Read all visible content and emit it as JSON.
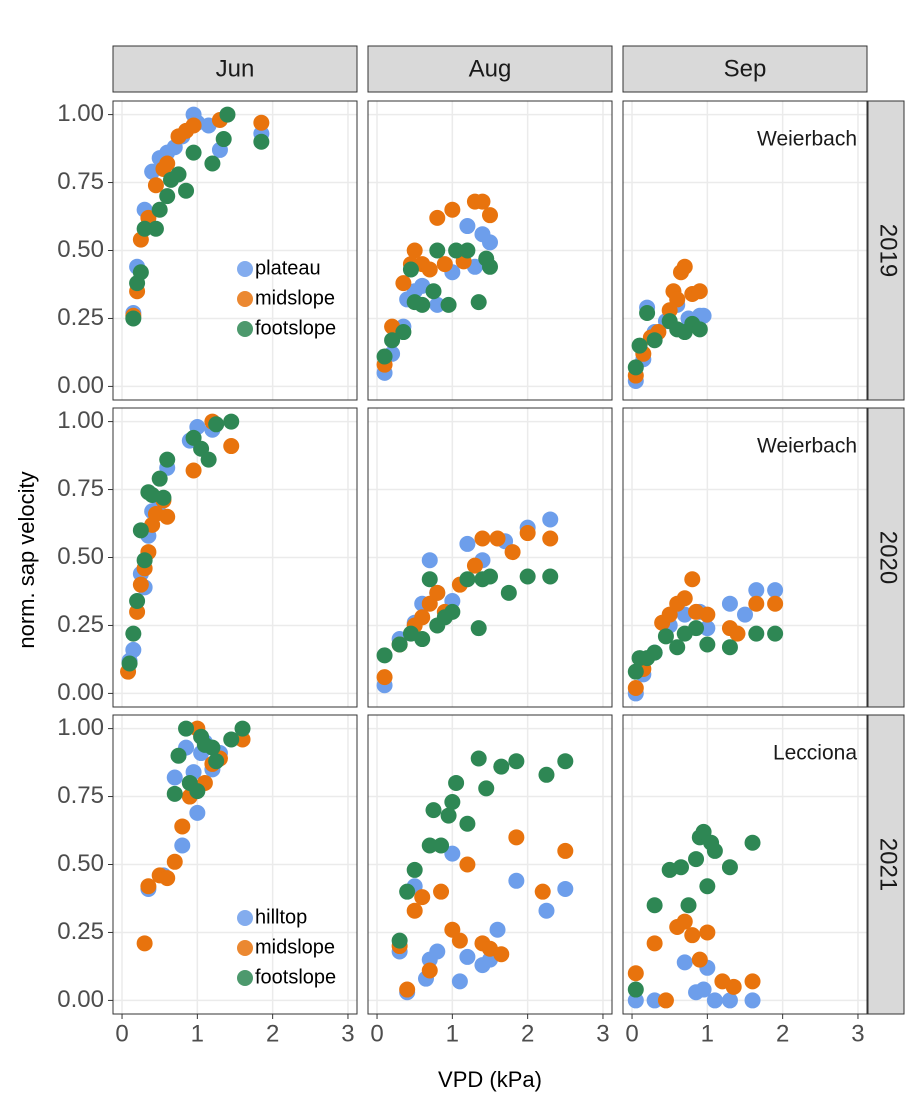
{
  "chart_data": {
    "type": "scatter",
    "xlabel": "VPD (kPa)",
    "ylabel": "norm. sap velocity",
    "columns": [
      "Jun",
      "Aug",
      "Sep"
    ],
    "rows": [
      "2019",
      "2020",
      "2021"
    ],
    "xlim": [
      -0.12,
      3.12
    ],
    "ylim": [
      -0.05,
      1.05
    ],
    "xticks": [
      0,
      1,
      2,
      3
    ],
    "yticks": [
      {
        "value": 0,
        "label": "0.00"
      },
      {
        "value": 0.25,
        "label": "0.25"
      },
      {
        "value": 0.5,
        "label": "0.50"
      },
      {
        "value": 0.75,
        "label": "0.75"
      },
      {
        "value": 1,
        "label": "1.00"
      }
    ],
    "grid": true,
    "panels": [
      {
        "legend": "right",
        "series": [
          {
            "name": "plateau",
            "color": "#6d9eeb",
            "x": [
              0.15,
              0.2,
              0.3,
              0.4,
              0.5,
              0.6,
              0.7,
              0.8,
              0.95,
              1.0,
              1.15,
              1.3,
              1.85
            ],
            "y": [
              0.27,
              0.44,
              0.65,
              0.79,
              0.84,
              0.86,
              0.88,
              0.92,
              1.0,
              0.97,
              0.96,
              0.87,
              0.93
            ]
          },
          {
            "name": "midslope",
            "color": "#e8730d",
            "x": [
              0.15,
              0.2,
              0.25,
              0.35,
              0.45,
              0.55,
              0.6,
              0.75,
              0.85,
              0.95,
              1.3,
              1.85
            ],
            "y": [
              0.26,
              0.35,
              0.54,
              0.62,
              0.74,
              0.8,
              0.82,
              0.92,
              0.94,
              0.96,
              0.98,
              0.97
            ]
          },
          {
            "name": "footslope",
            "color": "#2e8754",
            "x": [
              0.15,
              0.2,
              0.25,
              0.3,
              0.45,
              0.5,
              0.6,
              0.65,
              0.75,
              0.85,
              0.95,
              1.2,
              1.35,
              1.4,
              1.85
            ],
            "y": [
              0.25,
              0.38,
              0.42,
              0.58,
              0.58,
              0.65,
              0.7,
              0.76,
              0.78,
              0.72,
              0.86,
              0.82,
              0.91,
              1.0,
              0.9
            ]
          }
        ]
      },
      {
        "series": [
          {
            "color": "#6d9eeb",
            "x": [
              0.1,
              0.2,
              0.35,
              0.4,
              0.5,
              0.6,
              0.8,
              1.0,
              1.2,
              1.3,
              1.4,
              1.5
            ],
            "y": [
              0.05,
              0.12,
              0.22,
              0.32,
              0.35,
              0.37,
              0.3,
              0.42,
              0.59,
              0.44,
              0.56,
              0.53
            ]
          },
          {
            "color": "#e8730d",
            "x": [
              0.1,
              0.2,
              0.35,
              0.45,
              0.5,
              0.6,
              0.7,
              0.8,
              0.9,
              1.0,
              1.15,
              1.3,
              1.4,
              1.5
            ],
            "y": [
              0.08,
              0.22,
              0.38,
              0.45,
              0.5,
              0.45,
              0.43,
              0.62,
              0.45,
              0.65,
              0.46,
              0.68,
              0.68,
              0.63
            ]
          },
          {
            "color": "#2e8754",
            "x": [
              0.1,
              0.2,
              0.35,
              0.45,
              0.5,
              0.6,
              0.75,
              0.8,
              0.95,
              1.05,
              1.2,
              1.35,
              1.45,
              1.5
            ],
            "y": [
              0.11,
              0.17,
              0.2,
              0.43,
              0.31,
              0.3,
              0.35,
              0.5,
              0.3,
              0.5,
              0.5,
              0.31,
              0.47,
              0.44
            ]
          }
        ]
      },
      {
        "annotation": "Weierbach",
        "series": [
          {
            "color": "#6d9eeb",
            "x": [
              0.05,
              0.15,
              0.2,
              0.3,
              0.45,
              0.6,
              0.75,
              0.9,
              0.95
            ],
            "y": [
              0.02,
              0.1,
              0.29,
              0.2,
              0.24,
              0.3,
              0.25,
              0.26,
              0.26
            ]
          },
          {
            "color": "#e8730d",
            "x": [
              0.05,
              0.15,
              0.25,
              0.35,
              0.5,
              0.55,
              0.6,
              0.65,
              0.7,
              0.8,
              0.9
            ],
            "y": [
              0.04,
              0.12,
              0.18,
              0.2,
              0.28,
              0.35,
              0.32,
              0.42,
              0.44,
              0.34,
              0.35
            ]
          },
          {
            "color": "#2e8754",
            "x": [
              0.05,
              0.1,
              0.2,
              0.3,
              0.5,
              0.6,
              0.7,
              0.8,
              0.9
            ],
            "y": [
              0.07,
              0.15,
              0.27,
              0.17,
              0.24,
              0.21,
              0.2,
              0.23,
              0.21
            ]
          }
        ]
      },
      {
        "series": [
          {
            "color": "#6d9eeb",
            "x": [
              0.1,
              0.15,
              0.25,
              0.3,
              0.35,
              0.4,
              0.5,
              0.6,
              0.9,
              1.0,
              1.2
            ],
            "y": [
              0.12,
              0.16,
              0.44,
              0.39,
              0.58,
              0.67,
              0.7,
              0.83,
              0.93,
              0.98,
              0.97
            ]
          },
          {
            "color": "#e8730d",
            "x": [
              0.08,
              0.2,
              0.25,
              0.3,
              0.35,
              0.4,
              0.45,
              0.55,
              0.6,
              0.95,
              1.2,
              1.45
            ],
            "y": [
              0.08,
              0.3,
              0.4,
              0.46,
              0.52,
              0.62,
              0.66,
              0.71,
              0.65,
              0.82,
              1.0,
              0.91
            ]
          },
          {
            "color": "#2e8754",
            "x": [
              0.1,
              0.15,
              0.2,
              0.25,
              0.3,
              0.35,
              0.4,
              0.5,
              0.55,
              0.6,
              0.95,
              1.05,
              1.15,
              1.25,
              1.45
            ],
            "y": [
              0.11,
              0.22,
              0.34,
              0.6,
              0.49,
              0.74,
              0.73,
              0.79,
              0.72,
              0.86,
              0.94,
              0.9,
              0.86,
              0.99,
              1.0
            ]
          }
        ]
      },
      {
        "series": [
          {
            "color": "#6d9eeb",
            "x": [
              0.1,
              0.3,
              0.5,
              0.6,
              0.7,
              0.8,
              1.0,
              1.2,
              1.4,
              1.7,
              2.0,
              2.3
            ],
            "y": [
              0.03,
              0.2,
              0.26,
              0.33,
              0.49,
              0.37,
              0.34,
              0.55,
              0.49,
              0.56,
              0.61,
              0.64
            ]
          },
          {
            "color": "#e8730d",
            "x": [
              0.1,
              0.3,
              0.5,
              0.6,
              0.7,
              0.8,
              0.9,
              1.1,
              1.3,
              1.4,
              1.6,
              1.8,
              2.0,
              2.3
            ],
            "y": [
              0.06,
              0.18,
              0.25,
              0.28,
              0.33,
              0.37,
              0.3,
              0.4,
              0.47,
              0.57,
              0.57,
              0.52,
              0.59,
              0.57
            ]
          },
          {
            "color": "#2e8754",
            "x": [
              0.1,
              0.3,
              0.45,
              0.6,
              0.7,
              0.8,
              0.9,
              1.0,
              1.2,
              1.35,
              1.4,
              1.5,
              1.75,
              2.0,
              2.3
            ],
            "y": [
              0.14,
              0.18,
              0.22,
              0.2,
              0.42,
              0.25,
              0.28,
              0.3,
              0.42,
              0.24,
              0.42,
              0.43,
              0.37,
              0.43,
              0.43
            ]
          }
        ]
      },
      {
        "annotation": "Weierbach",
        "series": [
          {
            "color": "#6d9eeb",
            "x": [
              0.05,
              0.15,
              0.3,
              0.5,
              0.7,
              0.9,
              1.0,
              1.3,
              1.5,
              1.65,
              1.9
            ],
            "y": [
              0.0,
              0.07,
              0.15,
              0.25,
              0.29,
              0.3,
              0.24,
              0.33,
              0.29,
              0.38,
              0.38
            ]
          },
          {
            "color": "#e8730d",
            "x": [
              0.05,
              0.15,
              0.4,
              0.5,
              0.6,
              0.7,
              0.8,
              0.85,
              1.0,
              1.3,
              1.4,
              1.65,
              1.9
            ],
            "y": [
              0.02,
              0.09,
              0.26,
              0.29,
              0.33,
              0.35,
              0.42,
              0.3,
              0.29,
              0.24,
              0.22,
              0.33,
              0.33
            ]
          },
          {
            "color": "#2e8754",
            "x": [
              0.05,
              0.1,
              0.2,
              0.3,
              0.45,
              0.6,
              0.7,
              0.85,
              1.0,
              1.3,
              1.65,
              1.9
            ],
            "y": [
              0.08,
              0.13,
              0.13,
              0.15,
              0.21,
              0.17,
              0.22,
              0.24,
              0.18,
              0.17,
              0.22,
              0.22
            ]
          }
        ]
      },
      {
        "legend": "lower right",
        "series": [
          {
            "name": "hilltop",
            "color": "#6d9eeb",
            "x": [
              0.35,
              0.55,
              0.7,
              0.8,
              0.85,
              0.95,
              1.0,
              1.05,
              1.1,
              1.2,
              1.3
            ],
            "y": [
              0.41,
              0.46,
              0.82,
              0.57,
              0.93,
              0.84,
              0.69,
              0.91,
              0.95,
              0.85,
              0.91
            ]
          },
          {
            "name": "midslope",
            "color": "#e8730d",
            "x": [
              0.3,
              0.35,
              0.5,
              0.6,
              0.7,
              0.8,
              0.9,
              1.0,
              1.1,
              1.2,
              1.3,
              1.6
            ],
            "y": [
              0.21,
              0.42,
              0.46,
              0.45,
              0.51,
              0.64,
              0.75,
              1.0,
              0.8,
              0.87,
              0.89,
              0.96
            ]
          },
          {
            "name": "footslope",
            "color": "#2e8754",
            "x": [
              0.7,
              0.75,
              0.85,
              0.9,
              1.0,
              1.05,
              1.1,
              1.2,
              1.25,
              1.45,
              1.6
            ],
            "y": [
              0.76,
              0.9,
              1.0,
              0.8,
              0.77,
              0.97,
              0.94,
              0.93,
              0.88,
              0.96,
              1.0
            ]
          }
        ]
      },
      {
        "series": [
          {
            "color": "#6d9eeb",
            "x": [
              0.3,
              0.4,
              0.5,
              0.65,
              0.7,
              0.8,
              1.0,
              1.1,
              1.2,
              1.4,
              1.5,
              1.6,
              1.85,
              2.25,
              2.5
            ],
            "y": [
              0.18,
              0.03,
              0.42,
              0.08,
              0.15,
              0.18,
              0.54,
              0.07,
              0.16,
              0.13,
              0.15,
              0.26,
              0.44,
              0.33,
              0.41
            ]
          },
          {
            "color": "#e8730d",
            "x": [
              0.3,
              0.4,
              0.5,
              0.6,
              0.7,
              0.85,
              1.0,
              1.1,
              1.2,
              1.4,
              1.5,
              1.65,
              1.85,
              2.2,
              2.5
            ],
            "y": [
              0.2,
              0.04,
              0.33,
              0.38,
              0.11,
              0.4,
              0.26,
              0.22,
              0.5,
              0.21,
              0.19,
              0.17,
              0.6,
              0.4,
              0.55
            ]
          },
          {
            "color": "#2e8754",
            "x": [
              0.3,
              0.4,
              0.5,
              0.7,
              0.75,
              0.85,
              0.95,
              1.0,
              1.05,
              1.2,
              1.35,
              1.45,
              1.65,
              1.85,
              2.25,
              2.5
            ],
            "y": [
              0.22,
              0.4,
              0.48,
              0.57,
              0.7,
              0.57,
              0.68,
              0.73,
              0.8,
              0.65,
              0.89,
              0.78,
              0.86,
              0.88,
              0.83,
              0.88
            ]
          }
        ]
      },
      {
        "annotation": "Lecciona",
        "series": [
          {
            "color": "#6d9eeb",
            "x": [
              0.05,
              0.3,
              0.7,
              0.85,
              0.95,
              1.0,
              1.1,
              1.3,
              1.6
            ],
            "y": [
              0.0,
              0.0,
              0.14,
              0.03,
              0.04,
              0.12,
              0.0,
              0.0,
              0.0
            ]
          },
          {
            "color": "#e8730d",
            "x": [
              0.05,
              0.3,
              0.45,
              0.6,
              0.7,
              0.8,
              0.9,
              1.0,
              1.2,
              1.35,
              1.6
            ],
            "y": [
              0.1,
              0.21,
              0.0,
              0.27,
              0.29,
              0.24,
              0.15,
              0.25,
              0.07,
              0.05,
              0.07
            ]
          },
          {
            "color": "#2e8754",
            "x": [
              0.05,
              0.3,
              0.5,
              0.65,
              0.75,
              0.85,
              0.9,
              0.95,
              1.0,
              1.05,
              1.1,
              1.3,
              1.6
            ],
            "y": [
              0.04,
              0.35,
              0.48,
              0.49,
              0.35,
              0.52,
              0.6,
              0.62,
              0.42,
              0.58,
              0.55,
              0.49,
              0.58
            ]
          }
        ]
      }
    ]
  }
}
